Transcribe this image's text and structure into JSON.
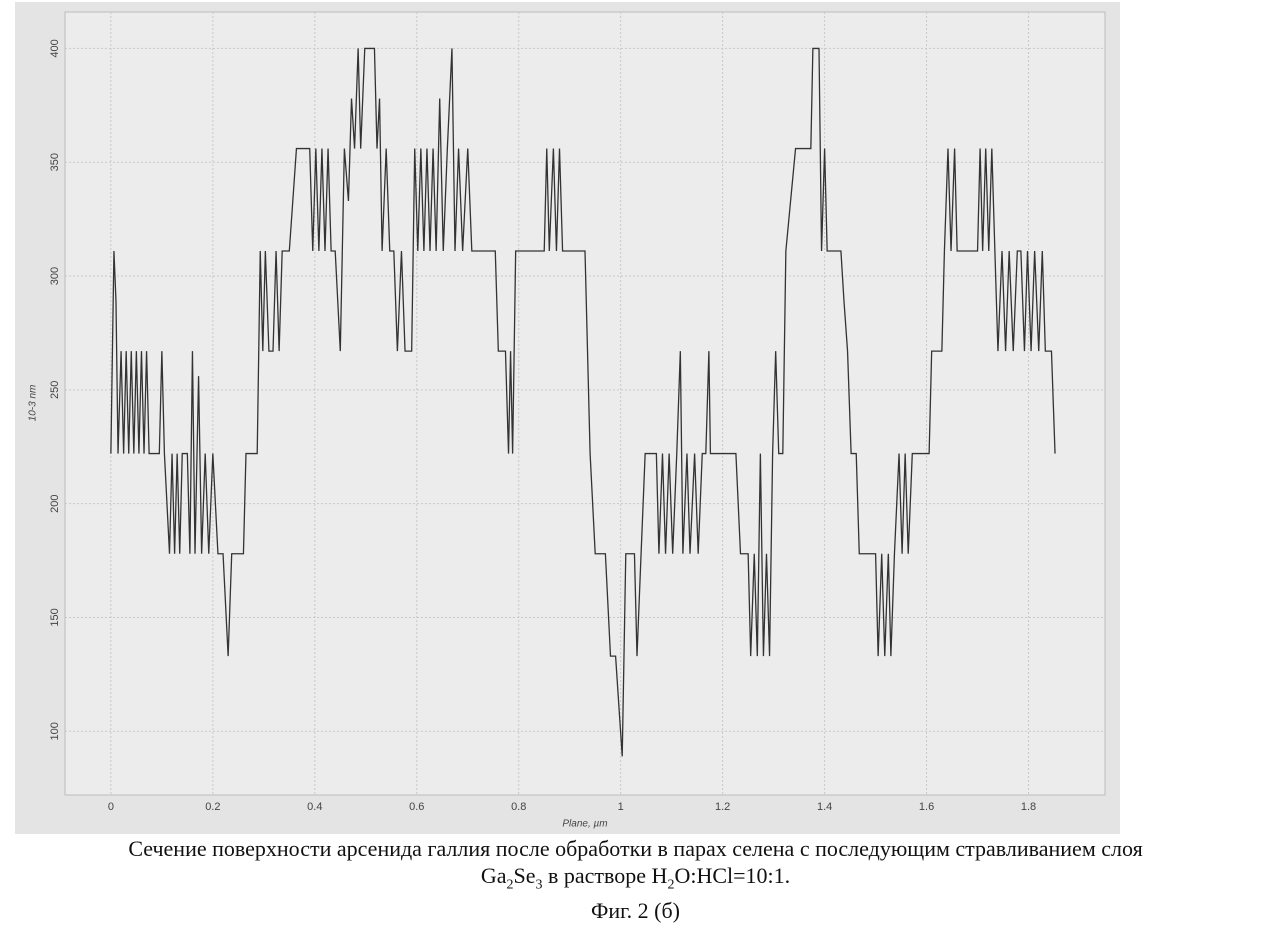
{
  "chart_data": {
    "type": "line",
    "x_label": "Plane, µm",
    "y_label": "10-3 nm",
    "color": "#333333",
    "grid": true,
    "xlim": [
      -0.09,
      1.95
    ],
    "ylim": [
      72,
      416
    ],
    "xticks": [
      0,
      0.2,
      0.4,
      0.6,
      0.8,
      1,
      1.2,
      1.4,
      1.6,
      1.8
    ],
    "yticks": [
      100,
      150,
      200,
      250,
      300,
      350,
      400
    ],
    "x": [
      0.0,
      0.006,
      0.01,
      0.014,
      0.02,
      0.025,
      0.03,
      0.035,
      0.04,
      0.045,
      0.05,
      0.055,
      0.06,
      0.065,
      0.07,
      0.075,
      0.095,
      0.1,
      0.105,
      0.115,
      0.12,
      0.125,
      0.13,
      0.135,
      0.14,
      0.15,
      0.155,
      0.16,
      0.165,
      0.172,
      0.178,
      0.185,
      0.192,
      0.2,
      0.21,
      0.22,
      0.23,
      0.237,
      0.26,
      0.265,
      0.287,
      0.293,
      0.298,
      0.303,
      0.31,
      0.318,
      0.324,
      0.33,
      0.336,
      0.35,
      0.364,
      0.39,
      0.396,
      0.402,
      0.408,
      0.414,
      0.42,
      0.426,
      0.432,
      0.44,
      0.45,
      0.458,
      0.466,
      0.472,
      0.478,
      0.485,
      0.49,
      0.498,
      0.517,
      0.522,
      0.527,
      0.532,
      0.54,
      0.547,
      0.555,
      0.562,
      0.57,
      0.577,
      0.59,
      0.596,
      0.602,
      0.608,
      0.614,
      0.62,
      0.626,
      0.632,
      0.638,
      0.645,
      0.652,
      0.66,
      0.669,
      0.675,
      0.682,
      0.69,
      0.7,
      0.708,
      0.754,
      0.76,
      0.774,
      0.78,
      0.784,
      0.788,
      0.794,
      0.85,
      0.855,
      0.86,
      0.868,
      0.874,
      0.88,
      0.886,
      0.93,
      0.94,
      0.95,
      0.97,
      0.98,
      0.99,
      1.003,
      1.01,
      1.027,
      1.032,
      1.04,
      1.048,
      1.07,
      1.075,
      1.082,
      1.088,
      1.095,
      1.102,
      1.11,
      1.117,
      1.122,
      1.13,
      1.136,
      1.145,
      1.152,
      1.16,
      1.167,
      1.173,
      1.176,
      1.226,
      1.235,
      1.25,
      1.255,
      1.262,
      1.268,
      1.274,
      1.28,
      1.286,
      1.292,
      1.298,
      1.304,
      1.31,
      1.318,
      1.324,
      1.343,
      1.373,
      1.377,
      1.389,
      1.394,
      1.4,
      1.405,
      1.432,
      1.438,
      1.445,
      1.452,
      1.462,
      1.468,
      1.5,
      1.505,
      1.512,
      1.518,
      1.525,
      1.53,
      1.537,
      1.546,
      1.552,
      1.558,
      1.564,
      1.572,
      1.605,
      1.61,
      1.63,
      1.635,
      1.642,
      1.648,
      1.655,
      1.66,
      1.7,
      1.705,
      1.71,
      1.716,
      1.722,
      1.728,
      1.734,
      1.74,
      1.748,
      1.755,
      1.762,
      1.77,
      1.778,
      1.785,
      1.792,
      1.798,
      1.805,
      1.812,
      1.82,
      1.827,
      1.833,
      1.845,
      1.852
    ],
    "values": [
      222,
      311,
      289,
      222,
      267,
      222,
      267,
      222,
      267,
      222,
      267,
      222,
      267,
      222,
      267,
      222,
      222,
      267,
      222,
      178,
      222,
      178,
      222,
      178,
      222,
      222,
      178,
      267,
      178,
      256,
      178,
      222,
      178,
      222,
      178,
      178,
      133,
      178,
      178,
      222,
      222,
      311,
      267,
      311,
      267,
      267,
      311,
      267,
      311,
      311,
      356,
      356,
      311,
      356,
      311,
      356,
      311,
      356,
      311,
      311,
      267,
      356,
      333,
      378,
      356,
      400,
      356,
      400,
      400,
      356,
      378,
      311,
      356,
      311,
      311,
      267,
      311,
      267,
      267,
      356,
      311,
      356,
      311,
      356,
      311,
      356,
      311,
      378,
      311,
      356,
      400,
      311,
      356,
      311,
      356,
      311,
      311,
      267,
      267,
      222,
      267,
      222,
      311,
      311,
      356,
      311,
      356,
      311,
      356,
      311,
      311,
      222,
      178,
      178,
      133,
      133,
      89,
      178,
      178,
      133,
      178,
      222,
      222,
      178,
      222,
      178,
      222,
      178,
      222,
      267,
      178,
      222,
      178,
      222,
      178,
      222,
      222,
      267,
      222,
      222,
      178,
      178,
      133,
      178,
      133,
      222,
      133,
      178,
      133,
      222,
      267,
      222,
      222,
      311,
      356,
      356,
      400,
      400,
      311,
      356,
      311,
      311,
      289,
      267,
      222,
      222,
      178,
      178,
      133,
      178,
      133,
      178,
      133,
      178,
      222,
      178,
      222,
      178,
      222,
      222,
      267,
      267,
      311,
      356,
      311,
      356,
      311,
      311,
      356,
      311,
      356,
      311,
      356,
      311,
      267,
      311,
      267,
      311,
      267,
      311,
      311,
      267,
      311,
      267,
      311,
      267,
      311,
      267,
      267,
      222
    ]
  },
  "caption": {
    "line1": "Сечение поверхности арсенида галлия после обработки в парах селена с последующим стравливанием слоя",
    "line2": [
      "Ga",
      "2",
      "Se",
      "3",
      " в растворе H",
      "2",
      "O:HCl=10:1."
    ]
  },
  "figure_label": "Фиг. 2 (б)"
}
